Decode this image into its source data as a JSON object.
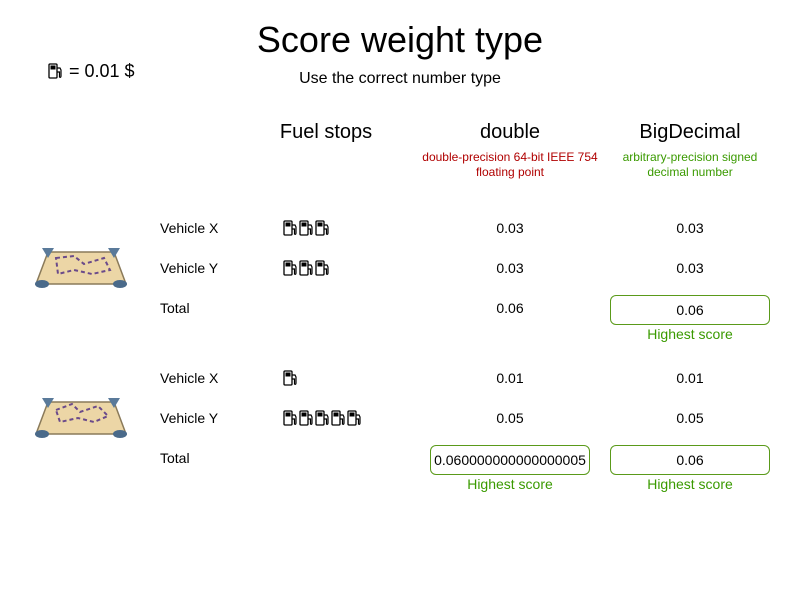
{
  "header": {
    "title": "Score weight type",
    "subtitle": "Use the correct number type",
    "legend_text": "= 0.01 $",
    "legend_icon": "fuel-pump-icon"
  },
  "columns": {
    "stops": {
      "label": "Fuel stops"
    },
    "double": {
      "label": "double",
      "desc_line1": "double-precision 64-bit IEEE 754",
      "desc_line2": "floating point",
      "color": "#b00000"
    },
    "bigdecimal": {
      "label": "BigDecimal",
      "desc_line1": "arbitrary-precision signed",
      "desc_line2": "decimal number",
      "color": "#3a9a00"
    }
  },
  "scenarios": [
    {
      "icon": "route-map-icon",
      "rows": [
        {
          "label": "Vehicle X",
          "fuel_stops": 3,
          "double": "0.03",
          "bigdecimal": "0.03"
        },
        {
          "label": "Vehicle Y",
          "fuel_stops": 3,
          "double": "0.03",
          "bigdecimal": "0.03"
        }
      ],
      "total": {
        "label": "Total",
        "double": "0.06",
        "bigdecimal": "0.06",
        "bigdecimal_highest": "Highest score"
      }
    },
    {
      "icon": "route-map-icon",
      "rows": [
        {
          "label": "Vehicle X",
          "fuel_stops": 1,
          "double": "0.01",
          "bigdecimal": "0.01"
        },
        {
          "label": "Vehicle Y",
          "fuel_stops": 5,
          "double": "0.05",
          "bigdecimal": "0.05"
        }
      ],
      "total": {
        "label": "Total",
        "double": "0.060000000000000005",
        "bigdecimal": "0.06",
        "double_highest": "Highest score",
        "bigdecimal_highest": "Highest score"
      }
    }
  ]
}
